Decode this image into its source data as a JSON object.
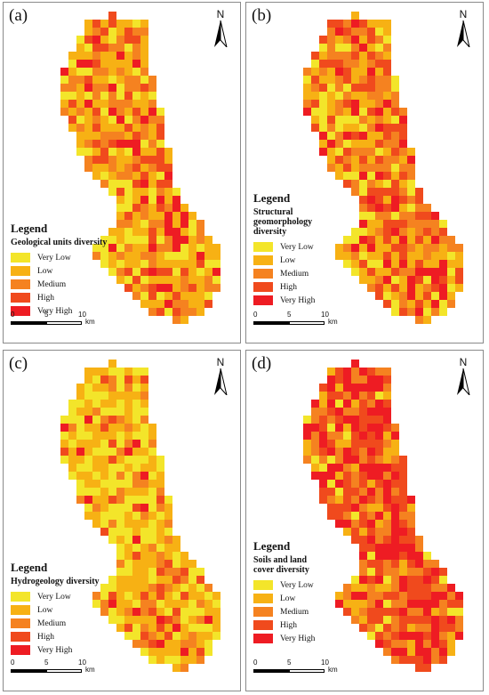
{
  "north_label": "N",
  "scale": {
    "ticks": [
      "0",
      "5",
      "10"
    ],
    "unit": "km"
  },
  "legend_heading": "Legend",
  "classes": [
    "Very Low",
    "Low",
    "Medium",
    "High",
    "Very High"
  ],
  "class_colors": [
    "#f3e52a",
    "#f7b114",
    "#f58220",
    "#f04a1d",
    "#ee1c23"
  ],
  "panels": [
    {
      "label": "(a)",
      "legend_title": "Geological units diversity",
      "class_weights": [
        0.25,
        0.38,
        0.2,
        0.12,
        0.05
      ],
      "hotspot_weight": 0.45
    },
    {
      "label": "(b)",
      "legend_title": "Structural geomorphology diversity",
      "class_weights": [
        0.25,
        0.3,
        0.22,
        0.16,
        0.07
      ],
      "hotspot_weight": 0.55
    },
    {
      "label": "(c)",
      "legend_title": "Hydrogeology diversity",
      "class_weights": [
        0.42,
        0.38,
        0.12,
        0.06,
        0.02
      ],
      "hotspot_weight": 0.25
    },
    {
      "label": "(d)",
      "legend_title": "Soils and land cover diversity",
      "class_weights": [
        0.1,
        0.22,
        0.25,
        0.25,
        0.18
      ],
      "hotspot_weight": 0.9
    }
  ]
}
